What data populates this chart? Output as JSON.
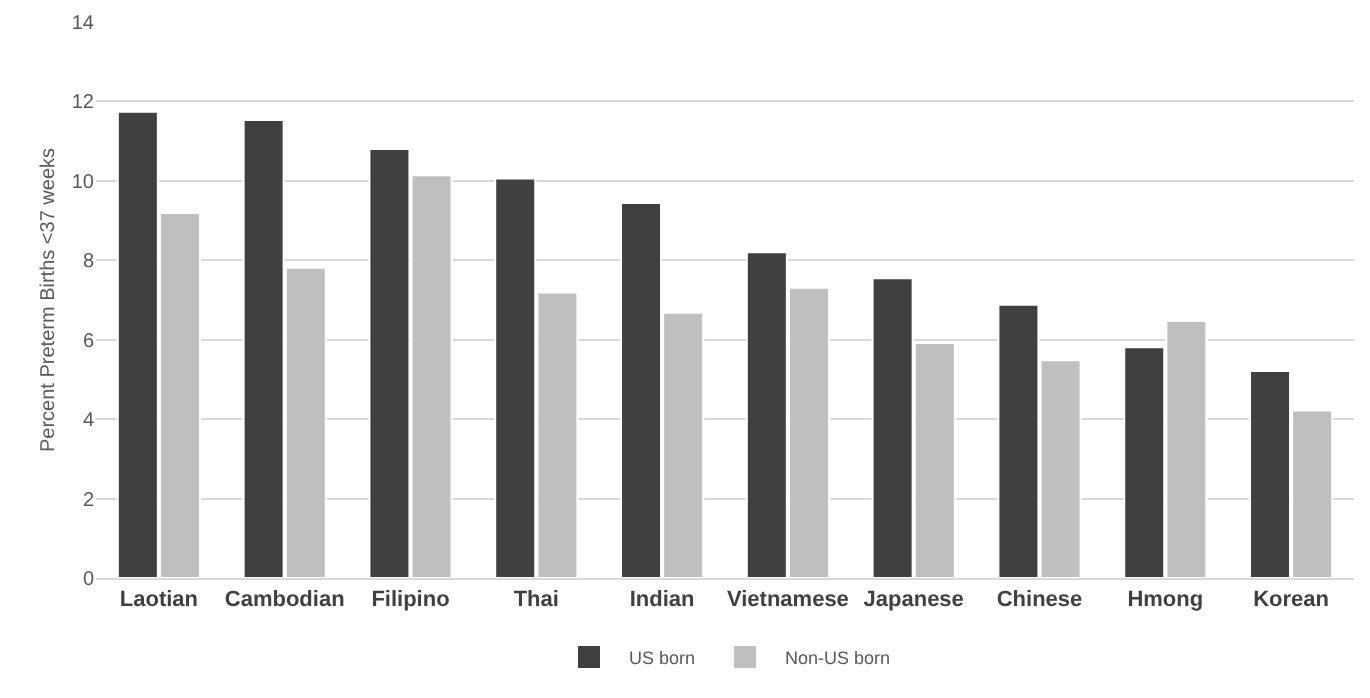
{
  "chart_data": {
    "type": "bar",
    "ylabel": "Percent Preterm Births <37 weeks",
    "categories": [
      "Laotian",
      "Cambodian",
      "Filipino",
      "Thai",
      "Indian",
      "Vietnamese",
      "Japanese",
      "Chinese",
      "Hmong",
      "Korean"
    ],
    "series": [
      {
        "name": "US born",
        "color": "#404040",
        "values": [
          11.74,
          11.53,
          10.8,
          10.06,
          9.44,
          8.2,
          7.55,
          6.88,
          5.81,
          5.21
        ]
      },
      {
        "name": "Non-US born",
        "color": "#bfbfbf",
        "values": [
          9.19,
          7.81,
          10.14,
          7.19,
          6.68,
          7.31,
          5.92,
          5.48,
          6.47,
          4.22
        ]
      }
    ],
    "ylim": [
      0,
      14
    ],
    "yticks": [
      0,
      2,
      4,
      6,
      8,
      10,
      12,
      14
    ],
    "grid": "y",
    "legend": "bottom"
  }
}
